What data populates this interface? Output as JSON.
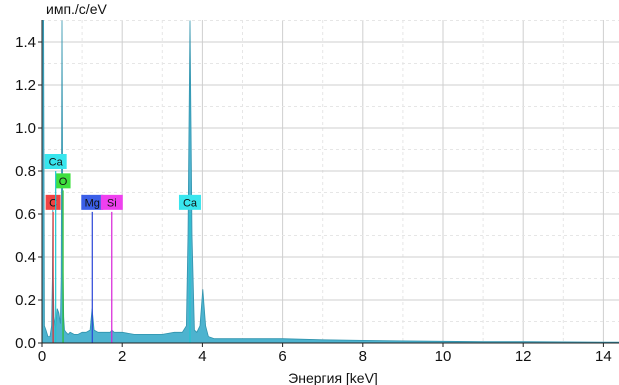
{
  "chart_data": {
    "type": "area",
    "ylabel": "имп./c/eV",
    "xlabel": "Энергия [keV]",
    "xlim": [
      0,
      14.4
    ],
    "ylim": [
      0,
      1.5
    ],
    "xticks": [
      "0",
      "2",
      "4",
      "6",
      "8",
      "10",
      "12",
      "14"
    ],
    "yticks": [
      "0.0",
      "0.2",
      "0.4",
      "0.6",
      "0.8",
      "1.0",
      "1.2",
      "1.4"
    ],
    "grid": true,
    "spectrum": {
      "fill_color": "#4db3cf",
      "edge_color": "#2f93ad",
      "x": [
        0.0,
        0.04,
        0.06,
        0.1,
        0.15,
        0.2,
        0.24,
        0.26,
        0.27,
        0.28,
        0.3,
        0.34,
        0.38,
        0.42,
        0.46,
        0.48,
        0.5,
        0.52,
        0.54,
        0.56,
        0.6,
        0.65,
        0.7,
        0.8,
        0.9,
        1.0,
        1.1,
        1.2,
        1.25,
        1.3,
        1.4,
        1.5,
        1.6,
        1.7,
        1.74,
        1.8,
        2.0,
        2.3,
        2.6,
        3.0,
        3.3,
        3.5,
        3.6,
        3.64,
        3.69,
        3.74,
        3.8,
        3.86,
        3.94,
        4.01,
        4.08,
        4.15,
        4.3,
        5.0,
        6.0,
        7.0,
        8.0,
        9.0,
        10.0,
        11.0,
        12.0,
        13.0,
        14.0,
        14.4
      ],
      "y": [
        1.5,
        1.5,
        0.08,
        0.06,
        0.03,
        0.03,
        0.08,
        0.3,
        0.62,
        0.3,
        0.12,
        0.07,
        0.16,
        0.14,
        0.09,
        0.3,
        1.5,
        0.4,
        0.12,
        0.06,
        0.05,
        0.04,
        0.05,
        0.04,
        0.04,
        0.05,
        0.05,
        0.06,
        0.16,
        0.06,
        0.05,
        0.05,
        0.05,
        0.05,
        0.06,
        0.05,
        0.05,
        0.04,
        0.04,
        0.04,
        0.05,
        0.05,
        0.08,
        0.5,
        1.5,
        0.5,
        0.06,
        0.05,
        0.08,
        0.25,
        0.08,
        0.03,
        0.02,
        0.02,
        0.02,
        0.015,
        0.012,
        0.01,
        0.008,
        0.006,
        0.006,
        0.005,
        0.004,
        0.004
      ]
    },
    "markers": [
      {
        "label": "C",
        "energy": 0.277,
        "height": 0.61,
        "box_color": "#f04343",
        "line_color": "#e03030"
      },
      {
        "label": "O",
        "energy": 0.525,
        "height": 0.71,
        "box_color": "#3fe03f",
        "line_color": "#2fbf2f"
      },
      {
        "label": "Ca",
        "energy": 0.341,
        "height": 0.8,
        "box_color": "#38e6ee",
        "line_color": "#20c6d0"
      },
      {
        "label": "Mg",
        "energy": 1.254,
        "height": 0.61,
        "box_color": "#3b5fe8",
        "line_color": "#2a45d8"
      },
      {
        "label": "Si",
        "energy": 1.74,
        "height": 0.61,
        "box_color": "#ef40ef",
        "line_color": "#d820d8"
      },
      {
        "label": "Ca",
        "energy": 3.69,
        "height": 0.61,
        "box_color": "#38e6ee",
        "line_color": "#20c6d0"
      }
    ]
  }
}
